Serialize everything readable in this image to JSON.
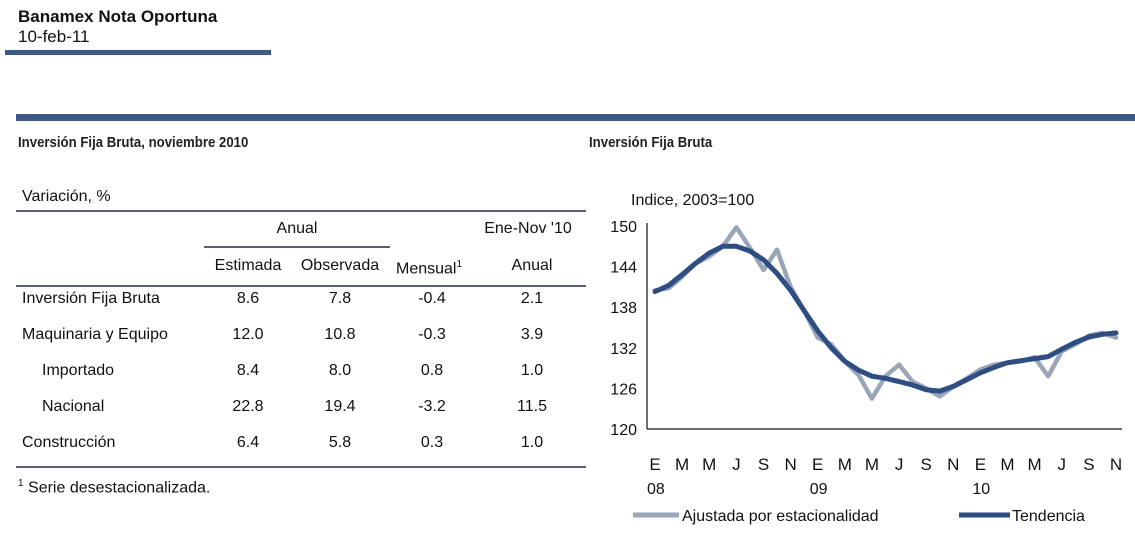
{
  "header": {
    "title": "Banamex Nota Oportuna",
    "date": "10-feb-11"
  },
  "table": {
    "title": "Inversión Fija Bruta, noviembre 2010",
    "unit_label": "Variación, %",
    "group_anual": "Anual",
    "group_ene_nov": "Ene-Nov '10",
    "columns": [
      "Estimada",
      "Observada",
      "Mensual",
      "Anual"
    ],
    "mensual_footnote_mark": "1",
    "rows": [
      {
        "label": "Inversión Fija Bruta",
        "values": [
          "8.6",
          "7.8",
          "-0.4",
          "2.1"
        ]
      },
      {
        "label": "Maquinaria y Equipo",
        "values": [
          "12.0",
          "10.8",
          "-0.3",
          "3.9"
        ]
      },
      {
        "label": "Importado",
        "values": [
          "8.4",
          "8.0",
          "0.8",
          "1.0"
        ]
      },
      {
        "label": "Nacional",
        "values": [
          "22.8",
          "19.4",
          "-3.2",
          "11.5"
        ]
      },
      {
        "label": "Construcción",
        "values": [
          "6.4",
          "5.8",
          "0.3",
          "1.0"
        ]
      }
    ],
    "footnote_mark": "1",
    "footnote": "Serie desestacionalizada."
  },
  "chart_data": {
    "type": "line",
    "title": "Inversión Fija Bruta",
    "ylabel": "Indice, 2003=100",
    "ylim": [
      120,
      150
    ],
    "yticks": [
      "150",
      "144",
      "138",
      "132",
      "126",
      "120"
    ],
    "month_labels": [
      "E",
      "M",
      "M",
      "J",
      "S",
      "N",
      "E",
      "M",
      "M",
      "J",
      "S",
      "N",
      "E",
      "M",
      "M",
      "J",
      "S",
      "N"
    ],
    "year_labels": [
      "08",
      "09",
      "10"
    ],
    "x": [
      "2008-01",
      "2008-02",
      "2008-03",
      "2008-04",
      "2008-05",
      "2008-06",
      "2008-07",
      "2008-08",
      "2008-09",
      "2008-10",
      "2008-11",
      "2008-12",
      "2009-01",
      "2009-02",
      "2009-03",
      "2009-04",
      "2009-05",
      "2009-06",
      "2009-07",
      "2009-08",
      "2009-09",
      "2009-10",
      "2009-11",
      "2009-12",
      "2010-01",
      "2010-02",
      "2010-03",
      "2010-04",
      "2010-05",
      "2010-06",
      "2010-07",
      "2010-08",
      "2010-09",
      "2010-10",
      "2010-11"
    ],
    "series": [
      {
        "name": "Ajustada por estacionalidad",
        "color": "#9aa6b8",
        "values": [
          140.5,
          140.8,
          142.5,
          144.5,
          145.5,
          147,
          149.8,
          146.8,
          143.5,
          146.5,
          141,
          137.5,
          133.5,
          132.5,
          130,
          128,
          124.5,
          127.8,
          129.5,
          127,
          126,
          124.8,
          126.3,
          127.5,
          128.8,
          129.5,
          129.8,
          130,
          130.6,
          127.8,
          131.5,
          132.5,
          133.8,
          134.2,
          133.5
        ]
      },
      {
        "name": "Tendencia",
        "color": "#2e4d82",
        "values": [
          140.3,
          141.2,
          142.8,
          144.5,
          146,
          147,
          147,
          146.3,
          145,
          143,
          140.5,
          137.5,
          134.5,
          132,
          130,
          128.7,
          127.8,
          127.5,
          127,
          126.5,
          125.8,
          125.6,
          126.3,
          127.3,
          128.3,
          129.1,
          129.8,
          130.1,
          130.4,
          130.7,
          131.8,
          132.8,
          133.6,
          134.0,
          134.2
        ]
      }
    ],
    "legend_placement": "bottom"
  },
  "colors": {
    "accent": "#3d5a86",
    "rule": "#5a5f75"
  }
}
